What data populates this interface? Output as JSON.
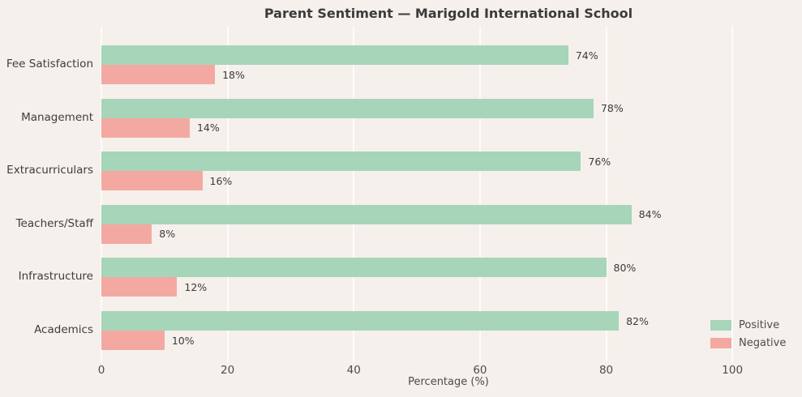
{
  "chart_data": {
    "type": "bar",
    "orientation": "horizontal",
    "title": "Parent Sentiment — Marigold International School",
    "xlabel": "Percentage (%)",
    "ylabel": "",
    "categories": [
      "Fee Satisfaction",
      "Management",
      "Extracurriculars",
      "Teachers/Staff",
      "Infrastructure",
      "Academics"
    ],
    "series": [
      {
        "name": "Positive",
        "color": "#a7d5b9",
        "values": [
          74,
          78,
          76,
          84,
          80,
          82
        ]
      },
      {
        "name": "Negative",
        "color": "#f4a8a2",
        "values": [
          18,
          14,
          16,
          8,
          12,
          10
        ]
      }
    ],
    "value_labels": {
      "positive": [
        "74%",
        "78%",
        "76%",
        "84%",
        "80%",
        "82%"
      ],
      "negative": [
        "18%",
        "14%",
        "16%",
        "8%",
        "12%",
        "10%"
      ]
    },
    "xlim": [
      0,
      110
    ],
    "xticks": [
      0,
      20,
      40,
      60,
      80,
      100
    ],
    "xtick_labels": [
      "0",
      "20",
      "40",
      "60",
      "80",
      "100"
    ],
    "grid": true,
    "gridline_color": "#fdfcfa",
    "background_color": "#f5f0eb",
    "legend_position": "lower right",
    "legend": [
      {
        "label": "Positive",
        "color": "#a7d5b9"
      },
      {
        "label": "Negative",
        "color": "#f4a8a2"
      }
    ]
  }
}
